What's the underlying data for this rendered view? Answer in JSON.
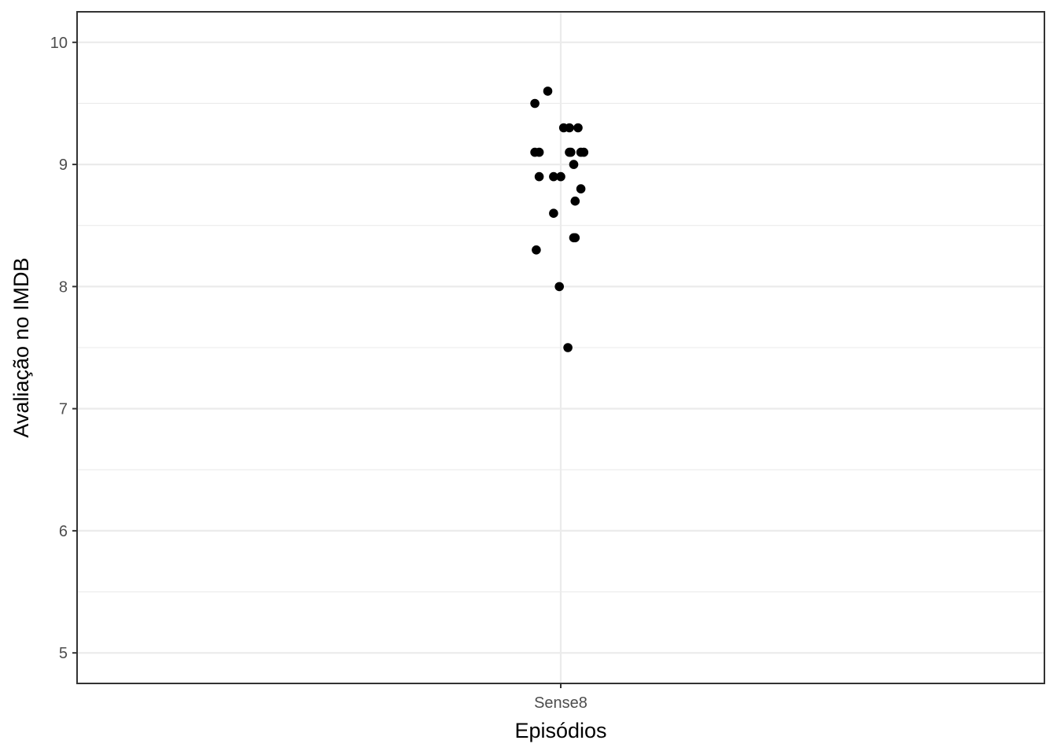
{
  "chart_data": {
    "type": "scatter",
    "title": "",
    "xlabel": "Episódios",
    "ylabel": "Avaliação no IMDB",
    "categories": [
      "Sense8"
    ],
    "ylim": [
      4.75,
      10.25
    ],
    "y_ticks": [
      "5",
      "6",
      "7",
      "8",
      "9",
      "10"
    ],
    "grid": true,
    "legend": "none",
    "point_color": "#000000",
    "series": [
      {
        "category": "Sense8",
        "points": [
          {
            "jitter": -0.09,
            "y": 9.6
          },
          {
            "jitter": -0.18,
            "y": 9.5
          },
          {
            "jitter": 0.02,
            "y": 9.3
          },
          {
            "jitter": 0.06,
            "y": 9.3
          },
          {
            "jitter": 0.12,
            "y": 9.3
          },
          {
            "jitter": -0.18,
            "y": 9.1
          },
          {
            "jitter": -0.15,
            "y": 9.1
          },
          {
            "jitter": 0.06,
            "y": 9.1
          },
          {
            "jitter": 0.07,
            "y": 9.1
          },
          {
            "jitter": 0.16,
            "y": 9.1
          },
          {
            "jitter": 0.14,
            "y": 9.1
          },
          {
            "jitter": 0.09,
            "y": 9.0
          },
          {
            "jitter": -0.15,
            "y": 8.9
          },
          {
            "jitter": -0.05,
            "y": 8.9
          },
          {
            "jitter": 0.0,
            "y": 8.9
          },
          {
            "jitter": 0.14,
            "y": 8.8
          },
          {
            "jitter": 0.1,
            "y": 8.7
          },
          {
            "jitter": -0.05,
            "y": 8.6
          },
          {
            "jitter": 0.09,
            "y": 8.4
          },
          {
            "jitter": 0.1,
            "y": 8.4
          },
          {
            "jitter": -0.17,
            "y": 8.3
          },
          {
            "jitter": -0.01,
            "y": 8.0
          },
          {
            "jitter": 0.05,
            "y": 7.5
          }
        ]
      }
    ]
  }
}
